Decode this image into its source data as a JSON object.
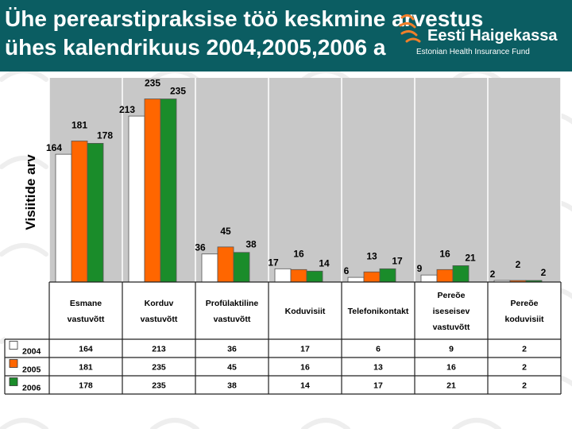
{
  "header": {
    "title_line1": "Ühe perearstipraksise töö keskmine arvestus",
    "title_line2": "ühes kalendrikuus 2004,2005,2006 a",
    "logo_name": "Eesti Haigekassa",
    "logo_subtitle": "Estonian Health Insurance Fund",
    "logo_icon": "haigekassa-logo-icon",
    "background_color": "#0b5d62"
  },
  "chart_data": {
    "type": "bar",
    "title": "",
    "ylabel": "Visiitide arv",
    "xlabel": "",
    "ylim": [
      0,
      260
    ],
    "legend_position": "bottom-left data table",
    "categories": [
      [
        "Esmane",
        "vastuvõtt"
      ],
      [
        "Korduv",
        "vastuvõtt"
      ],
      [
        "Profülaktiline",
        "vastuvõtt"
      ],
      [
        "Koduvisiit"
      ],
      [
        "Telefonikontakt"
      ],
      [
        "Pereõe",
        "iseseisev",
        "vastuvõtt"
      ],
      [
        "Pereõe",
        "koduvisiit"
      ]
    ],
    "series": [
      {
        "name": "2004",
        "color": "#ffffff",
        "values": [
          164,
          213,
          36,
          17,
          6,
          9,
          2
        ]
      },
      {
        "name": "2005",
        "color": "#ff6600",
        "values": [
          181,
          235,
          45,
          16,
          13,
          16,
          2
        ]
      },
      {
        "name": "2006",
        "color": "#1a8c2a",
        "values": [
          178,
          235,
          38,
          14,
          17,
          21,
          2
        ]
      }
    ]
  }
}
